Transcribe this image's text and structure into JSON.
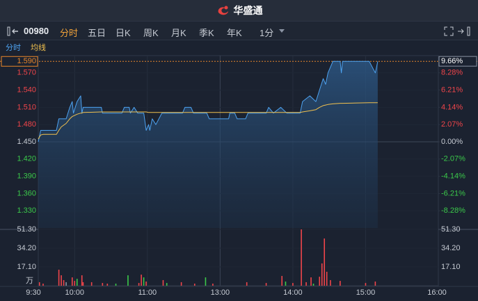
{
  "header": {
    "title": "华盛通"
  },
  "toolbar": {
    "code": "00980",
    "tabs": [
      "分时",
      "五日",
      "日K",
      "周K",
      "月K",
      "季K",
      "年K"
    ],
    "interval": "1分"
  },
  "chart_data": [
    {
      "type": "line",
      "x": [
        "9:30",
        "9:32",
        "9:34",
        "9:45",
        "9:47",
        "9:49",
        "9:53",
        "9:56",
        "9:58",
        "9:59",
        "10:02",
        "10:05",
        "10:06",
        "10:07",
        "10:22",
        "10:23",
        "10:39",
        "10:41",
        "10:45",
        "10:46",
        "10:49",
        "10:52",
        "10:57",
        "10:59",
        "11:01",
        "11:02",
        "11:04",
        "11:07",
        "11:12",
        "11:29",
        "11:31",
        "11:36",
        "11:38",
        "11:49",
        "11:51",
        "13:07",
        "13:08",
        "13:12",
        "13:14",
        "13:21",
        "13:23",
        "13:38",
        "13:40",
        "13:44",
        "13:50",
        "13:55",
        "14:06",
        "14:08",
        "14:14",
        "14:19",
        "14:22",
        "14:25",
        "14:27",
        "14:29",
        "14:33",
        "14:39",
        "14:40",
        "14:41",
        "15:03",
        "15:08",
        "15:10"
      ],
      "series": [
        {
          "name": "分时",
          "color": "#4ea3f1",
          "values": [
            1.45,
            1.47,
            1.47,
            1.47,
            1.49,
            1.49,
            1.49,
            1.51,
            1.52,
            1.5,
            1.52,
            1.53,
            1.5,
            1.51,
            1.51,
            1.5,
            1.5,
            1.51,
            1.51,
            1.5,
            1.51,
            1.5,
            1.5,
            1.47,
            1.48,
            1.47,
            1.49,
            1.48,
            1.5,
            1.5,
            1.51,
            1.51,
            1.5,
            1.5,
            1.49,
            1.49,
            1.5,
            1.5,
            1.49,
            1.49,
            1.5,
            1.5,
            1.51,
            1.5,
            1.51,
            1.5,
            1.5,
            1.52,
            1.53,
            1.52,
            1.54,
            1.56,
            1.55,
            1.57,
            1.59,
            1.59,
            1.57,
            1.59,
            1.59,
            1.57,
            1.59
          ]
        },
        {
          "name": "均线",
          "color": "#f2c14e",
          "values": [
            1.455,
            1.462,
            1.463,
            1.463,
            1.47,
            1.476,
            1.482,
            1.49,
            1.494,
            1.495,
            1.498,
            1.5,
            1.5,
            1.501,
            1.502,
            1.502,
            1.502,
            1.502,
            1.502,
            1.502,
            1.502,
            1.502,
            1.502,
            1.502,
            1.501,
            1.501,
            1.501,
            1.501,
            1.501,
            1.501,
            1.501,
            1.501,
            1.501,
            1.501,
            1.501,
            1.501,
            1.501,
            1.501,
            1.501,
            1.501,
            1.501,
            1.501,
            1.501,
            1.501,
            1.501,
            1.501,
            1.501,
            1.502,
            1.504,
            1.506,
            1.51,
            1.513,
            1.514,
            1.515,
            1.516,
            1.517,
            1.517,
            1.517,
            1.518,
            1.518,
            1.518
          ]
        }
      ],
      "ylim": [
        1.3,
        1.6
      ],
      "yticks": [
        {
          "value": 1.59,
          "label": "1.590"
        },
        {
          "value": 1.57,
          "label": "1.570"
        },
        {
          "value": 1.54,
          "label": "1.540"
        },
        {
          "value": 1.51,
          "label": "1.510"
        },
        {
          "value": 1.48,
          "label": "1.480"
        },
        {
          "value": 1.45,
          "label": "1.450"
        },
        {
          "value": 1.42,
          "label": "1.420"
        },
        {
          "value": 1.39,
          "label": "1.390"
        },
        {
          "value": 1.36,
          "label": "1.360"
        },
        {
          "value": 1.33,
          "label": "1.330"
        }
      ],
      "y2lim": [
        -10.34,
        10.34
      ],
      "y2ticks": [
        {
          "value": 9.66,
          "label": "9.66%"
        },
        {
          "value": 8.28,
          "label": "8.28%"
        },
        {
          "value": 6.21,
          "label": "6.21%"
        },
        {
          "value": 4.14,
          "label": "4.14%"
        },
        {
          "value": 2.07,
          "label": "2.07%"
        },
        {
          "value": 0,
          "label": "0.00%"
        },
        {
          "value": -2.07,
          "label": "-2.07%"
        },
        {
          "value": -4.14,
          "label": "-4.14%"
        },
        {
          "value": -6.21,
          "label": "-6.21%"
        },
        {
          "value": -8.28,
          "label": "-8.28%"
        }
      ]
    },
    {
      "type": "bar",
      "x": [
        "9:31",
        "9:34",
        "9:47",
        "9:49",
        "9:51",
        "9:53",
        "9:58",
        "10:00",
        "10:02",
        "10:06",
        "10:07",
        "10:14",
        "10:23",
        "10:27",
        "10:34",
        "10:44",
        "10:53",
        "10:55",
        "10:57",
        "10:59",
        "11:13",
        "11:16",
        "11:28",
        "11:39",
        "11:48",
        "11:54",
        "13:22",
        "13:38",
        "13:51",
        "13:54",
        "14:00",
        "14:07",
        "14:11",
        "14:15",
        "14:17",
        "14:22",
        "14:24",
        "14:26",
        "14:28",
        "14:31",
        "14:39",
        "15:00",
        "15:08"
      ],
      "values": [
        3.2,
        1.9,
        14.6,
        9.5,
        5.1,
        3.2,
        7.6,
        4.4,
        6.3,
        9.5,
        3.2,
        3.2,
        2.5,
        1.9,
        1.9,
        9.5,
        2.5,
        10.1,
        7.6,
        3.8,
        5.1,
        2.5,
        3.2,
        1.9,
        7.6,
        1.9,
        3.2,
        2.5,
        8.9,
        3.8,
        2.5,
        51.3,
        3.2,
        7.6,
        1.9,
        8.2,
        20.3,
        43.0,
        12.7,
        5.1,
        4.4,
        2.5,
        3.8
      ],
      "colors": [
        "#f0454a",
        "#f0454a",
        "#f0454a",
        "#f0454a",
        "#f0454a",
        "#8a93a3",
        "#f0454a",
        "#f0454a",
        "#3bc94a",
        "#f0454a",
        "#f0454a",
        "#f0454a",
        "#f0454a",
        "#f0454a",
        "#3bc94a",
        "#3bc94a",
        "#f0454a",
        "#f0454a",
        "#3bc94a",
        "#f0454a",
        "#f0454a",
        "#3bc94a",
        "#f0454a",
        "#f0454a",
        "#3bc94a",
        "#f0454a",
        "#f0454a",
        "#f0454a",
        "#f0454a",
        "#3bc94a",
        "#f0454a",
        "#f0454a",
        "#f0454a",
        "#f0454a",
        "#3bc94a",
        "#f0454a",
        "#f0454a",
        "#f0454a",
        "#f0454a",
        "#f0454a",
        "#f0454a",
        "#f0454a",
        "#f0454a"
      ],
      "ylim": [
        0,
        51.3
      ],
      "yticks": [
        {
          "value": 51.3,
          "label": "51.30"
        },
        {
          "value": 34.2,
          "label": "34.20"
        },
        {
          "value": 17.1,
          "label": "17.10"
        }
      ],
      "y_unit": "万",
      "xticks": [
        "9:30",
        "10:00",
        "11:00",
        "13:00",
        "14:00",
        "15:00",
        "16:00"
      ]
    }
  ]
}
